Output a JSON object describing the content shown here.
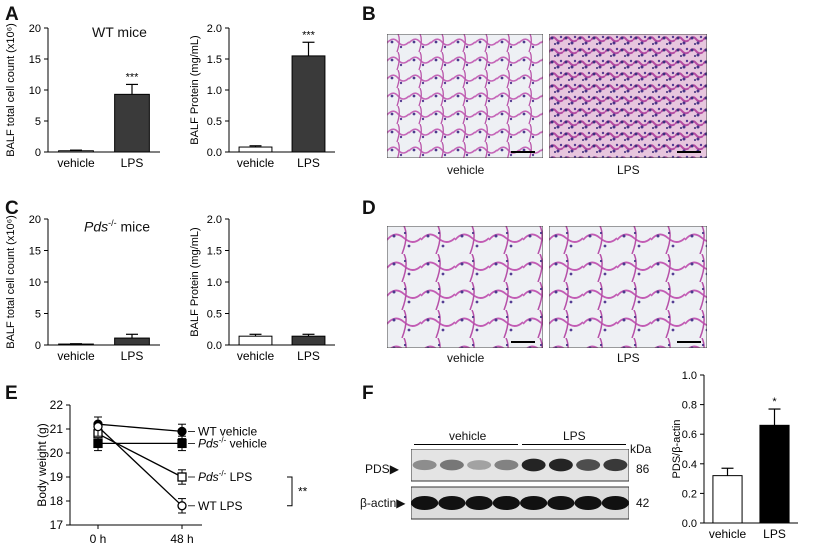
{
  "panels": {
    "A": "A",
    "B": "B",
    "C": "C",
    "D": "D",
    "E": "E",
    "F": "F"
  },
  "panel_a": {
    "group_label": "WT mice",
    "chart_data": [
      {
        "type": "bar",
        "categories": [
          "vehicle",
          "LPS"
        ],
        "values": [
          0.2,
          9.3
        ],
        "errors": [
          0.1,
          1.6
        ],
        "significance": [
          "",
          "***"
        ],
        "ylabel": "BALF total cell count (x10⁶)",
        "ylim": [
          0,
          20
        ],
        "yticks": [
          "0",
          "5",
          "10",
          "15",
          "20"
        ],
        "colors": [
          "#ffffff",
          "#3a3a3a"
        ]
      },
      {
        "type": "bar",
        "categories": [
          "vehicle",
          "LPS"
        ],
        "values": [
          0.08,
          1.55
        ],
        "errors": [
          0.02,
          0.22
        ],
        "significance": [
          "",
          "***"
        ],
        "ylabel": "BALF Protein (mg/mL)",
        "ylim": [
          0,
          2.0
        ],
        "yticks": [
          "0.0",
          "0.5",
          "1.0",
          "1.5",
          "2.0"
        ],
        "colors": [
          "#ffffff",
          "#3a3a3a"
        ]
      }
    ]
  },
  "panel_b": {
    "labels": [
      "vehicle",
      "LPS"
    ]
  },
  "panel_c": {
    "group_label_prefix": "Pds",
    "group_label_sup": "-/-",
    "group_label_suffix": " mice",
    "chart_data": [
      {
        "type": "bar",
        "categories": [
          "vehicle",
          "LPS"
        ],
        "values": [
          0.15,
          1.1
        ],
        "errors": [
          0.05,
          0.6
        ],
        "significance": [
          "",
          ""
        ],
        "ylabel": "BALF total cell count (x10⁶)",
        "ylim": [
          0,
          20
        ],
        "yticks": [
          "0",
          "5",
          "10",
          "15",
          "20"
        ],
        "colors": [
          "#ffffff",
          "#3a3a3a"
        ]
      },
      {
        "type": "bar",
        "categories": [
          "vehicle",
          "LPS"
        ],
        "values": [
          0.14,
          0.14
        ],
        "errors": [
          0.03,
          0.03
        ],
        "significance": [
          "",
          ""
        ],
        "ylabel": "BALF Protein (mg/mL)",
        "ylim": [
          0,
          2.0
        ],
        "yticks": [
          "0.0",
          "0.5",
          "1.0",
          "1.5",
          "2.0"
        ],
        "colors": [
          "#ffffff",
          "#3a3a3a"
        ]
      }
    ]
  },
  "panel_d": {
    "labels": [
      "vehicle",
      "LPS"
    ]
  },
  "panel_e": {
    "chart_data": {
      "type": "line",
      "x": [
        "0 h",
        "48 h"
      ],
      "ylabel": "Body weight (g)",
      "ylim": [
        17,
        22
      ],
      "yticks": [
        "17",
        "18",
        "19",
        "20",
        "21",
        "22"
      ],
      "series": [
        {
          "name": "WT vehicle",
          "values": [
            21.2,
            20.9
          ],
          "errors": [
            0.3,
            0.3
          ],
          "marker": "filled-circle"
        },
        {
          "name": "Pds-/- vehicle",
          "values": [
            20.4,
            20.4
          ],
          "errors": [
            0.3,
            0.3
          ],
          "marker": "filled-square"
        },
        {
          "name": "Pds-/- LPS",
          "values": [
            20.8,
            19.0
          ],
          "errors": [
            0.4,
            0.3
          ],
          "marker": "open-square"
        },
        {
          "name": "WT LPS",
          "values": [
            21.1,
            17.8
          ],
          "errors": [
            0.4,
            0.3
          ],
          "marker": "open-circle"
        }
      ],
      "legend_labels": [
        {
          "text": "WT vehicle",
          "italic_prefix": "",
          "sup": ""
        },
        {
          "text": " vehicle",
          "italic_prefix": "Pds",
          "sup": "-/-"
        },
        {
          "text": " LPS",
          "italic_prefix": "Pds",
          "sup": "-/-"
        },
        {
          "text": "WT LPS",
          "italic_prefix": "",
          "sup": ""
        }
      ],
      "significance": "**"
    }
  },
  "panel_f": {
    "blot": {
      "group_labels": [
        "vehicle",
        "LPS"
      ],
      "rows": [
        {
          "name": "PDS",
          "kda": "86"
        },
        {
          "name": "β-actin",
          "kda": "42"
        }
      ],
      "kda_label": "kDa",
      "pds_band_intensity": [
        0.45,
        0.55,
        0.35,
        0.5,
        0.95,
        0.95,
        0.75,
        0.85
      ],
      "actin_band_intensity": [
        1,
        1,
        1,
        1,
        1,
        1,
        1,
        1
      ]
    },
    "chart_data": {
      "type": "bar",
      "categories": [
        "vehicle",
        "LPS"
      ],
      "values": [
        0.32,
        0.66
      ],
      "errors": [
        0.05,
        0.11
      ],
      "significance": [
        "",
        "*"
      ],
      "ylabel": "PDS/β-actin",
      "ylim": [
        0,
        1.0
      ],
      "yticks": [
        "0.0",
        "0.2",
        "0.4",
        "0.6",
        "0.8",
        "1.0"
      ],
      "colors": [
        "#ffffff",
        "#000000"
      ]
    }
  }
}
